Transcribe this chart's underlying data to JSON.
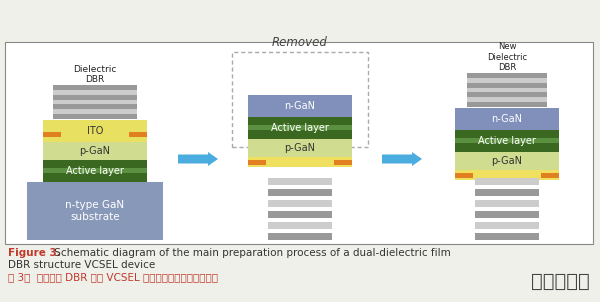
{
  "bg_color": "#f0f0eb",
  "panel_bg": "#ffffff",
  "caption_line1_bold": "Figure 3.",
  "caption_line1_rest": " Schematic diagram of the main preparation process of a dual-dielectric film",
  "caption_line2": "DBR structure VCSEL device",
  "caption_line3": "图 3．  双介质膜 DBR 结构 VCSEL 器件的主要制备流程示意图",
  "watermark": "时空手游网",
  "fig_bold_color": "#c0392b",
  "fig_rest_color": "#333333",
  "caption3_color": "#c0392b",
  "watermark_color": "#444444",
  "removed_label": "Removed",
  "dbr_stripe_dark": "#999999",
  "dbr_stripe_light": "#cccccc",
  "ito_color": "#e8e060",
  "p_gan_color": "#d0dd90",
  "active_dark": "#3a6820",
  "active_light": "#5a9040",
  "n_gan_color": "#8090bb",
  "substrate_color": "#8898b8",
  "orange_color": "#e08020",
  "yellow_base": "#f0e060",
  "arrow_color": "#4aacdf",
  "removed_box_color": "#aaaaaa",
  "bottom_stripe_dark": "#999999",
  "bottom_stripe_light": "#cccccc"
}
